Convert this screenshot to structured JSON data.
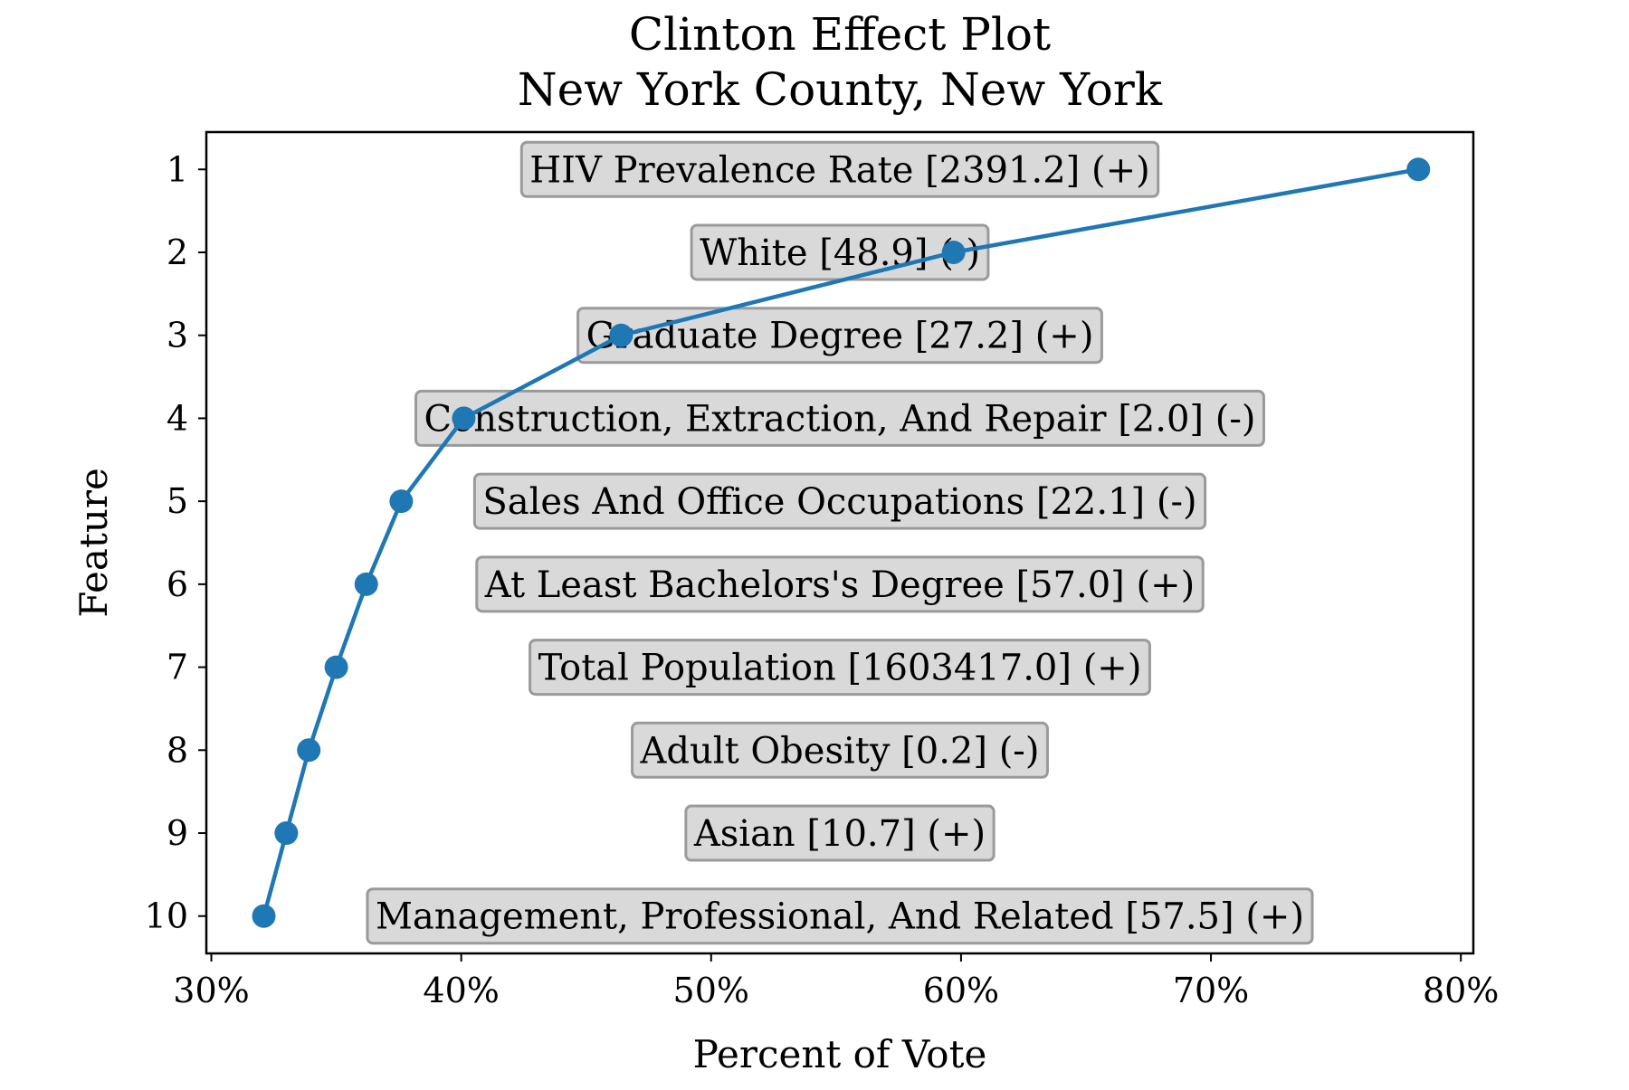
{
  "chart_data": {
    "type": "line",
    "title": "Clinton Effect Plot",
    "subtitle": "New York County, New York",
    "xlabel": "Percent of Vote",
    "ylabel": "Feature",
    "xlim": [
      29.8,
      80.5
    ],
    "ylim": [
      10.45,
      0.55
    ],
    "x_ticks": [
      30,
      40,
      50,
      60,
      70,
      80
    ],
    "x_tick_labels": [
      "30%",
      "40%",
      "50%",
      "60%",
      "70%",
      "80%"
    ],
    "y_ticks": [
      1,
      2,
      3,
      4,
      5,
      6,
      7,
      8,
      9,
      10
    ],
    "y_tick_labels": [
      "1",
      "2",
      "3",
      "4",
      "5",
      "6",
      "7",
      "8",
      "9",
      "10"
    ],
    "grid": false,
    "legend": "none",
    "series": [
      {
        "x": [
          78.3,
          59.7,
          46.4,
          40.1,
          37.6,
          36.2,
          35.0,
          33.9,
          33.0,
          32.1
        ],
        "y": [
          1,
          2,
          3,
          4,
          5,
          6,
          7,
          8,
          9,
          10
        ],
        "color": "#1f77b4",
        "marker": "circle"
      }
    ],
    "annotations": [
      "HIV Prevalence Rate [2391.2] (+)",
      "White [48.9] (-)",
      "Graduate Degree [27.2] (+)",
      "Construction, Extraction, And Repair [2.0] (-)",
      "Sales And Office Occupations [22.1] (-)",
      "At Least Bachelors's Degree [57.0] (+)",
      "Total Population [1603417.0] (+)",
      "Adult Obesity [0.2] (-)",
      "Asian [10.7] (+)",
      "Management, Professional, And Related [57.5] (+)"
    ],
    "annotation_style": {
      "box_fill": "#d9d9d9",
      "box_stroke": "#9a9a9a"
    }
  }
}
